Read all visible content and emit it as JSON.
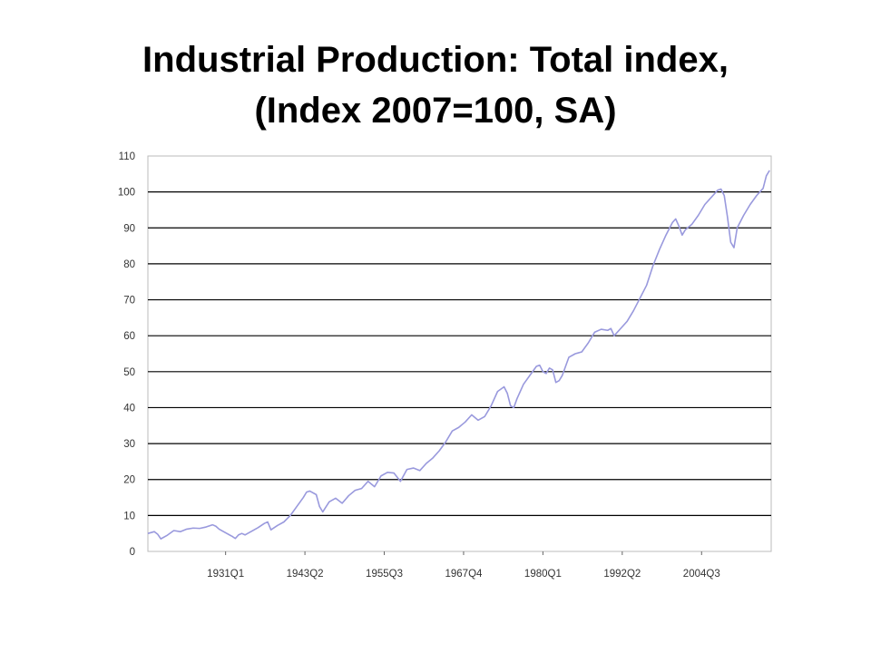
{
  "title": {
    "line1": "Industrial Production: Total index,",
    "line2": "(Index 2007=100, SA)"
  },
  "chart_data": {
    "type": "line",
    "title": "Industrial Production: Total index, (Index 2007=100, SA)",
    "xlabel": "",
    "ylabel": "",
    "ylim": [
      0,
      110
    ],
    "yticks": [
      0,
      10,
      20,
      30,
      40,
      50,
      60,
      70,
      80,
      90,
      100,
      110
    ],
    "xlim": [
      1919.0,
      2015.25
    ],
    "xticks": [
      {
        "label": "1931Q1",
        "x": 1931.0
      },
      {
        "label": "1943Q2",
        "x": 1943.25
      },
      {
        "label": "1955Q3",
        "x": 1955.5
      },
      {
        "label": "1967Q4",
        "x": 1967.75
      },
      {
        "label": "1980Q1",
        "x": 1980.0
      },
      {
        "label": "1992Q2",
        "x": 1992.25
      },
      {
        "label": "2004Q3",
        "x": 2004.5
      }
    ],
    "grid": {
      "horizontal": true,
      "vertical": false
    },
    "line_color": "#9999dd",
    "gridline_color": "#000000",
    "series": [
      {
        "x": [
          1919.0,
          1920.0,
          1920.5,
          1921.0,
          1922.0,
          1923.0,
          1924.0,
          1925.0,
          1926.0,
          1927.0,
          1928.0,
          1929.0,
          1929.5,
          1930.0,
          1931.0,
          1932.0,
          1932.5,
          1933.0,
          1933.5,
          1934.0,
          1935.0,
          1936.0,
          1937.0,
          1937.5,
          1938.0,
          1939.0,
          1940.0,
          1941.0,
          1942.0,
          1943.0,
          1943.5,
          1944.0,
          1945.0,
          1945.5,
          1946.0,
          1947.0,
          1948.0,
          1949.0,
          1950.0,
          1951.0,
          1952.0,
          1953.0,
          1954.0,
          1955.0,
          1956.0,
          1957.0,
          1958.0,
          1959.0,
          1960.0,
          1961.0,
          1962.0,
          1963.0,
          1964.0,
          1965.0,
          1966.0,
          1967.0,
          1968.0,
          1969.0,
          1970.0,
          1971.0,
          1972.0,
          1973.0,
          1974.0,
          1974.5,
          1975.0,
          1975.5,
          1976.0,
          1977.0,
          1978.0,
          1979.0,
          1979.5,
          1980.0,
          1980.5,
          1981.0,
          1981.5,
          1982.0,
          1982.5,
          1983.0,
          1984.0,
          1985.0,
          1986.0,
          1987.0,
          1988.0,
          1989.0,
          1990.0,
          1990.5,
          1991.0,
          1992.0,
          1993.0,
          1994.0,
          1995.0,
          1996.0,
          1997.0,
          1998.0,
          1999.0,
          2000.0,
          2000.5,
          2001.0,
          2001.5,
          2002.0,
          2003.0,
          2004.0,
          2005.0,
          2006.0,
          2007.0,
          2007.5,
          2008.0,
          2008.5,
          2009.0,
          2009.5,
          2010.0,
          2011.0,
          2012.0,
          2013.0,
          2014.0,
          2014.5,
          2015.0
        ],
        "values": [
          5.0,
          5.5,
          4.8,
          3.5,
          4.5,
          5.8,
          5.5,
          6.2,
          6.5,
          6.4,
          6.8,
          7.4,
          7.0,
          6.2,
          5.2,
          4.2,
          3.6,
          4.6,
          5.0,
          4.6,
          5.6,
          6.6,
          7.8,
          8.2,
          6.0,
          7.2,
          8.2,
          10.0,
          12.5,
          15.0,
          16.5,
          16.8,
          15.8,
          12.5,
          11.0,
          13.8,
          14.8,
          13.4,
          15.5,
          17.0,
          17.5,
          19.5,
          18.0,
          21.0,
          22.0,
          21.8,
          19.5,
          22.8,
          23.2,
          22.5,
          24.5,
          26.0,
          28.0,
          30.5,
          33.5,
          34.5,
          36.0,
          38.0,
          36.5,
          37.5,
          40.5,
          44.5,
          45.8,
          44.0,
          40.5,
          40.0,
          42.5,
          46.5,
          49.0,
          51.5,
          51.8,
          50.0,
          49.5,
          51.0,
          50.5,
          47.0,
          47.5,
          49.0,
          54.0,
          55.0,
          55.5,
          58.0,
          61.0,
          61.8,
          61.5,
          62.0,
          60.0,
          62.0,
          64.0,
          67.0,
          70.5,
          74.0,
          79.5,
          84.0,
          88.0,
          91.5,
          92.5,
          90.5,
          88.0,
          89.5,
          91.0,
          93.5,
          96.5,
          98.5,
          100.5,
          100.8,
          99.0,
          93.0,
          86.0,
          84.5,
          90.0,
          93.5,
          96.5,
          99.0,
          101.0,
          104.5,
          106.0
        ]
      }
    ]
  }
}
